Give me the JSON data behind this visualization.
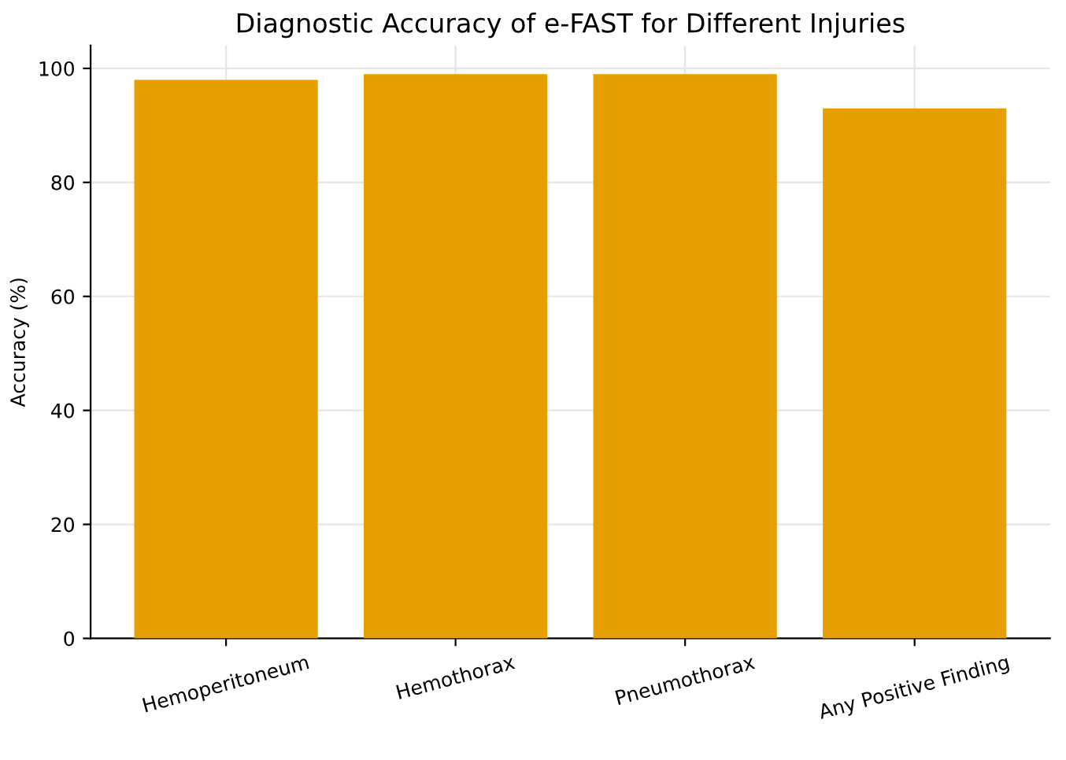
{
  "chart_data": {
    "type": "bar",
    "title": "Diagnostic Accuracy of e-FAST for Different Injuries",
    "ylabel": "Accuracy (%)",
    "categories": [
      "Hemoperitoneum",
      "Hemothorax",
      "Pneumothorax",
      "Any Positive Finding"
    ],
    "values": [
      98,
      99,
      99,
      93
    ],
    "color": "#e69f00",
    "ylim": [
      0,
      104
    ],
    "yticks": [
      0,
      20,
      40,
      60,
      80,
      100
    ],
    "grid": true
  }
}
